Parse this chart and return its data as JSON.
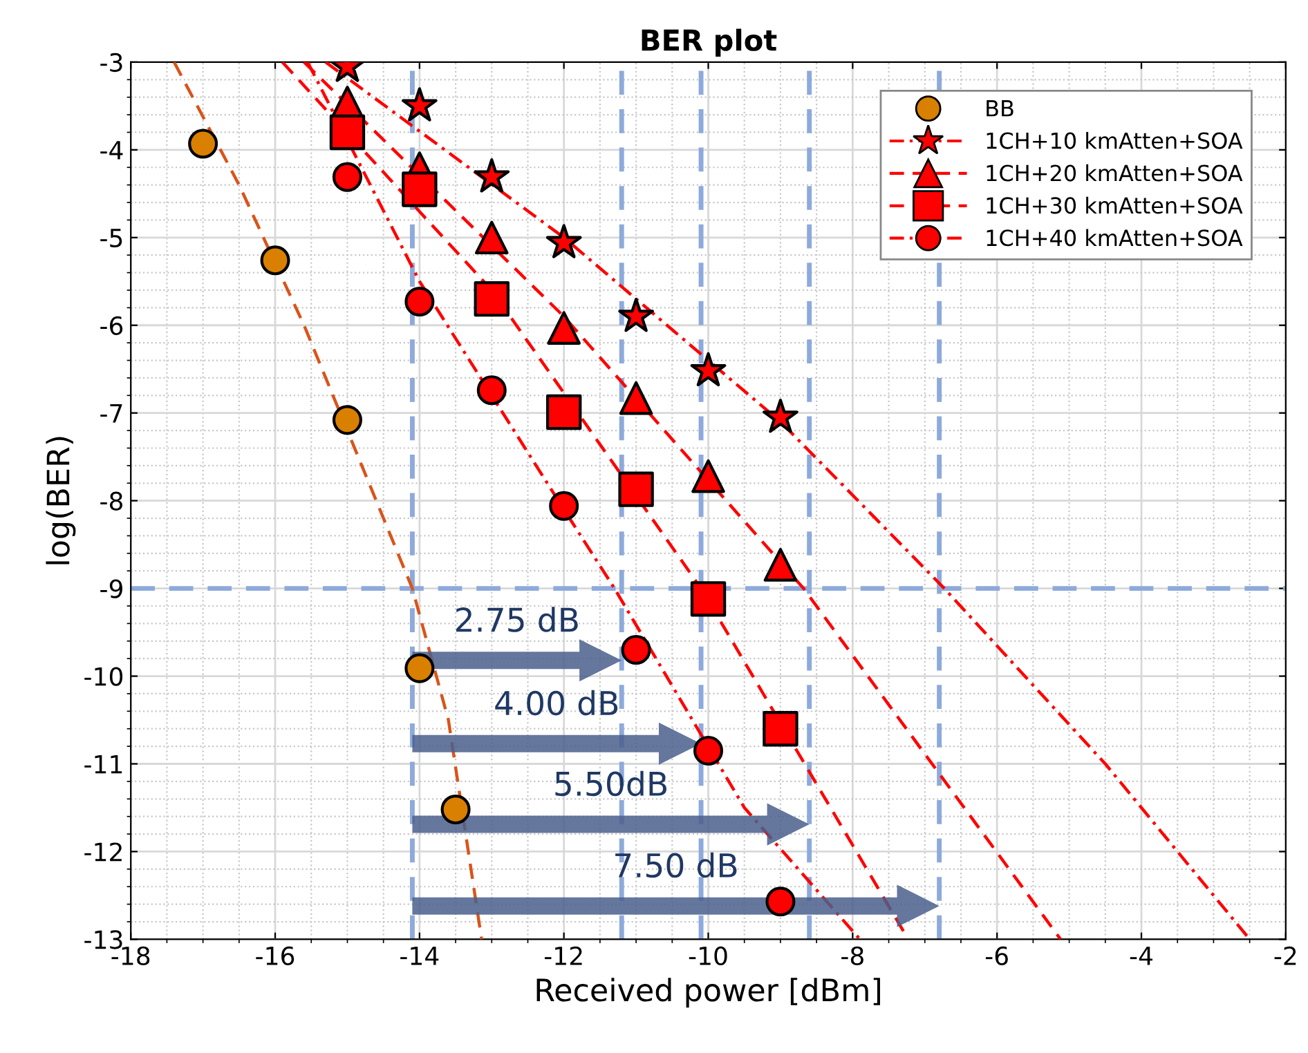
{
  "chart_data": {
    "type": "scatter",
    "title": "BER plot",
    "xlabel": "Received power [dBm]",
    "ylabel": "log(BER)",
    "xlim": [
      -18,
      -2
    ],
    "xticks": [
      -18,
      -16,
      -14,
      -12,
      -10,
      -8,
      -6,
      -4,
      -2
    ],
    "ylim": [
      -13,
      -3
    ],
    "yticks": [
      -3,
      -4,
      -5,
      -6,
      -7,
      -8,
      -9,
      -10,
      -11,
      -12,
      -13
    ],
    "grid": true,
    "legend": "top right",
    "series": [
      {
        "name": "BB",
        "color": "#d98000",
        "marker": "circle",
        "x": [
          -17,
          -16,
          -15,
          -14,
          -13.5
        ],
        "values": [
          -3.93,
          -5.26,
          -7.08,
          -9.91,
          -11.52
        ]
      },
      {
        "name": "1CH+10 kmAtten+SOA",
        "color": "#ff0000",
        "marker": "star",
        "line_style": "dashdot",
        "x": [
          -15,
          -14,
          -13,
          -12,
          -11,
          -10,
          -9
        ],
        "values": [
          -3.05,
          -3.5,
          -4.31,
          -5.06,
          -5.9,
          -6.52,
          -7.05
        ]
      },
      {
        "name": "1CH+20 kmAtten+SOA",
        "color": "#ff0000",
        "marker": "triangle",
        "line_style": "dashed",
        "x": [
          -15,
          -14,
          -13,
          -12,
          -11,
          -10,
          -9
        ],
        "values": [
          -3.46,
          -4.21,
          -5.0,
          -6.03,
          -6.83,
          -7.72,
          -8.73
        ]
      },
      {
        "name": "1CH+30 kmAtten+SOA",
        "color": "#ff0000",
        "marker": "square",
        "line_style": "dashed",
        "x": [
          -15,
          -14,
          -13,
          -12,
          -11,
          -10,
          -9
        ],
        "values": [
          -3.8,
          -4.45,
          -5.7,
          -6.99,
          -7.87,
          -9.12,
          -10.6
        ]
      },
      {
        "name": "1CH+40 kmAtten+SOA",
        "color": "#ff0000",
        "marker": "circle",
        "line_style": "dashdot",
        "x": [
          -15,
          -14,
          -13,
          -12,
          -11,
          -10,
          -9
        ],
        "values": [
          -4.31,
          -5.73,
          -6.74,
          -8.06,
          -9.7,
          -10.85,
          -12.57
        ]
      },
      {
        "type": "line",
        "color": "#d9541a",
        "line_style": "dashed",
        "x": [
          -17.4,
          -16.5,
          -15.6,
          -14.8,
          -14.1,
          -13.6,
          -13.14
        ],
        "values": [
          -3.0,
          -4.4,
          -6.0,
          -7.6,
          -9.0,
          -10.5,
          -13.0
        ]
      },
      {
        "type": "line",
        "color": "#ff0000",
        "line_style": "dashdot",
        "x": [
          -15.3,
          -12,
          -9,
          -6.73,
          -4.5,
          -2.5
        ],
        "values": [
          -3.0,
          -5.0,
          -7.1,
          -9.0,
          -11.0,
          -13.0
        ]
      },
      {
        "type": "line",
        "color": "#ff0000",
        "line_style": "dashed",
        "x": [
          -15.6,
          -12,
          -8.68,
          -5.12
        ],
        "values": [
          -3.0,
          -5.9,
          -9.0,
          -13.0
        ]
      },
      {
        "type": "line",
        "color": "#ff0000",
        "line_style": "dashed",
        "x": [
          -15.9,
          -13,
          -10.1,
          -7.23
        ],
        "values": [
          -3.0,
          -5.6,
          -9.0,
          -13.0
        ]
      },
      {
        "type": "line",
        "color": "#ff0000",
        "line_style": "dashdot",
        "x": [
          -15.55,
          -14,
          -12,
          -11.3,
          -9.5,
          -7.9
        ],
        "values": [
          -3.0,
          -5.5,
          -8.1,
          -9.0,
          -11.5,
          -13.0
        ]
      }
    ],
    "ref_lines": [
      {
        "axis": "x",
        "value": -14.1,
        "color": "#8eaadb",
        "line_style": "dashed"
      },
      {
        "axis": "x",
        "value": -11.2,
        "color": "#8eaadb",
        "line_style": "dashed"
      },
      {
        "axis": "x",
        "value": -10.1,
        "color": "#8eaadb",
        "line_style": "dashed"
      },
      {
        "axis": "x",
        "value": -8.6,
        "color": "#8eaadb",
        "line_style": "dashed"
      },
      {
        "axis": "x",
        "value": -6.8,
        "color": "#8eaadb",
        "line_style": "dashed"
      },
      {
        "axis": "y",
        "value": -9,
        "color": "#8eaadb",
        "line_style": "dashed"
      }
    ],
    "annotations": [
      "2.75 dB",
      "4.00 dB",
      "5.50dB",
      "7.50 dB"
    ]
  }
}
